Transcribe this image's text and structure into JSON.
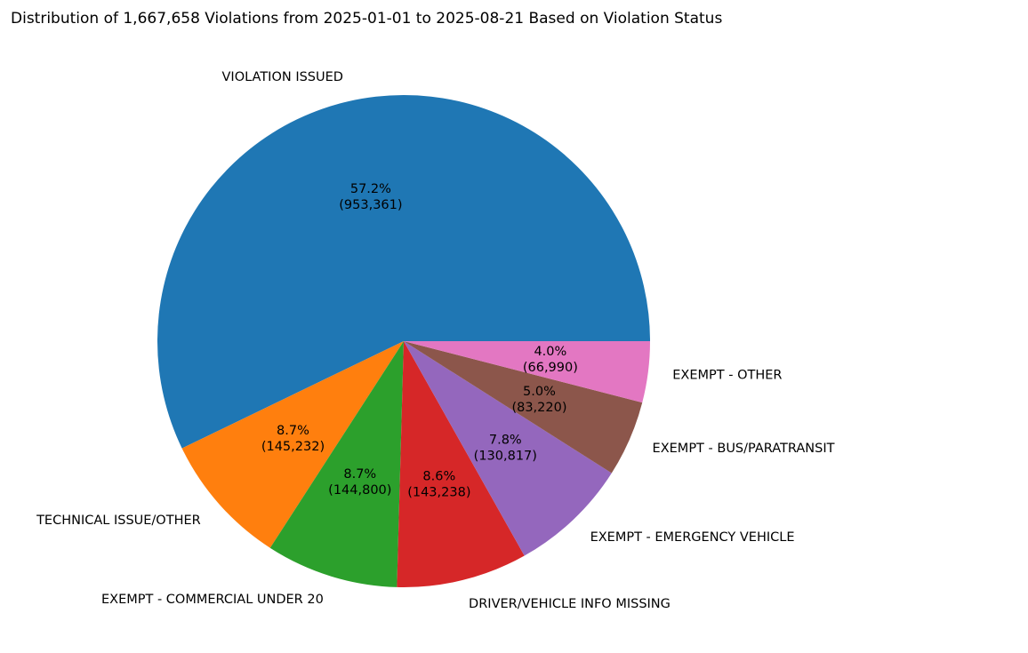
{
  "chart_data": {
    "type": "pie",
    "title": "Distribution of 1,667,658 Violations from 2025-01-01 to 2025-08-21 Based on Violation Status",
    "slices": [
      {
        "label": "VIOLATION ISSUED",
        "value": 953361,
        "pct": "57.2%",
        "count": "(953,361)",
        "color": "#1f77b4"
      },
      {
        "label": "TECHNICAL ISSUE/OTHER",
        "value": 145232,
        "pct": "8.7%",
        "count": "(145,232)",
        "color": "#ff7f0e"
      },
      {
        "label": "EXEMPT - COMMERCIAL UNDER 20",
        "value": 144800,
        "pct": "8.7%",
        "count": "(144,800)",
        "color": "#2ca02c"
      },
      {
        "label": "DRIVER/VEHICLE INFO MISSING",
        "value": 143238,
        "pct": "8.6%",
        "count": "(143,238)",
        "color": "#d62728"
      },
      {
        "label": "EXEMPT - EMERGENCY VEHICLE",
        "value": 130817,
        "pct": "7.8%",
        "count": "(130,817)",
        "color": "#9467bd"
      },
      {
        "label": "EXEMPT - BUS/PARATRANSIT",
        "value": 83220,
        "pct": "5.0%",
        "count": "(83,220)",
        "color": "#8c564b"
      },
      {
        "label": "EXEMPT - OTHER",
        "value": 66990,
        "pct": "4.0%",
        "count": "(66,990)",
        "color": "#e377c2"
      }
    ],
    "start_angle_deg": 0,
    "direction": "counterclockwise",
    "legend": "none"
  }
}
